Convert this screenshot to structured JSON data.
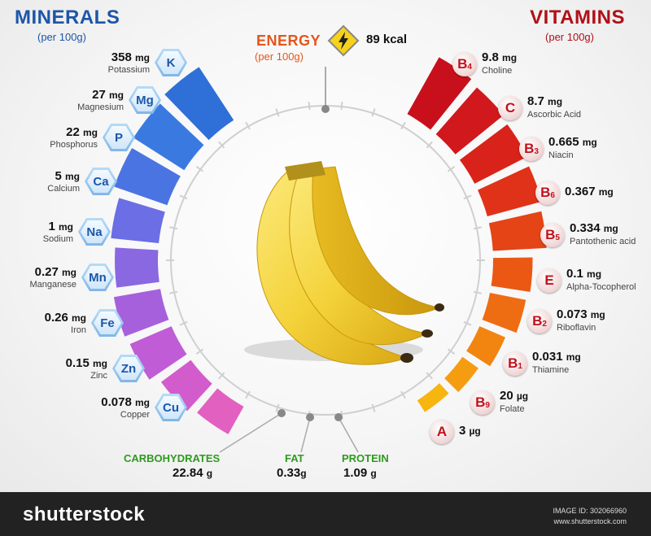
{
  "minerals": {
    "title": "MINERALS",
    "subtitle": "(per 100g)",
    "items": [
      {
        "value": "358",
        "unit": "mg",
        "name": "Potassium",
        "symbol": "K",
        "level": 1.0
      },
      {
        "value": "27",
        "unit": "mg",
        "name": "Magnesium",
        "symbol": "Mg",
        "level": 0.92
      },
      {
        "value": "22",
        "unit": "mg",
        "name": "Phosphorus",
        "symbol": "P",
        "level": 0.82
      },
      {
        "value": "5",
        "unit": "mg",
        "name": "Calcium",
        "symbol": "Ca",
        "level": 0.62
      },
      {
        "value": "1",
        "unit": "mg",
        "name": "Sodium",
        "symbol": "Na",
        "level": 0.5
      },
      {
        "value": "0.27",
        "unit": "mg",
        "name": "Manganese",
        "symbol": "Mn",
        "level": 0.6
      },
      {
        "value": "0.26",
        "unit": "mg",
        "name": "Iron",
        "symbol": "Fe",
        "level": 0.55
      },
      {
        "value": "0.15",
        "unit": "mg",
        "name": "Zinc",
        "symbol": "Zn",
        "level": 0.35
      },
      {
        "value": "0.078",
        "unit": "mg",
        "name": "Copper",
        "symbol": "Cu",
        "level": 0.22
      }
    ]
  },
  "vitamins": {
    "title": "VITAMINS",
    "subtitle": "(per 100g)",
    "items": [
      {
        "letter": "B",
        "sub": "4",
        "value": "9.8",
        "unit": "mg",
        "name": "Choline",
        "level": 1.0
      },
      {
        "letter": "C",
        "sub": "",
        "value": "8.7",
        "unit": "mg",
        "name": "Ascorbic Acid",
        "level": 0.95
      },
      {
        "letter": "B",
        "sub": "3",
        "value": "0.665",
        "unit": "mg",
        "name": "Niacin",
        "level": 0.9
      },
      {
        "letter": "B",
        "sub": "6",
        "value": "0.367",
        "unit": "mg",
        "name": "",
        "level": 0.85
      },
      {
        "letter": "B",
        "sub": "5",
        "value": "0.334",
        "unit": "mg",
        "name": "Pantothenic acid",
        "level": 0.8
      },
      {
        "letter": "E",
        "sub": "",
        "value": "0.1",
        "unit": "mg",
        "name": "Alpha-Tocopherol",
        "level": 0.55
      },
      {
        "letter": "B",
        "sub": "2",
        "value": "0.073",
        "unit": "mg",
        "name": "Riboflavin",
        "level": 0.5
      },
      {
        "letter": "B",
        "sub": "1",
        "value": "0.031",
        "unit": "mg",
        "name": "Thiamine",
        "level": 0.35
      },
      {
        "letter": "B",
        "sub": "9",
        "value": "20",
        "unit": "µg",
        "name": "Folate",
        "level": 0.2
      },
      {
        "letter": "A",
        "sub": "",
        "value": "3",
        "unit": "µg",
        "name": "",
        "level": 0.1
      }
    ]
  },
  "energy": {
    "title": "ENERGY",
    "subtitle": "(per 100g)",
    "value": "89 kcal"
  },
  "macros": [
    {
      "label": "CARBOHYDRATES",
      "value": "22.84",
      "unit": "g"
    },
    {
      "label": "FAT",
      "value": "0.33",
      "unit": "g"
    },
    {
      "label": "PROTEIN",
      "value": "1.09",
      "unit": "g"
    }
  ],
  "footer": {
    "logo": "shutterstock",
    "image_id": "IMAGE ID: 302066960",
    "site": "www.shutterstock.com"
  },
  "colors": {
    "mineral_title": "#1d56a8",
    "vitamin_title": "#b01018",
    "energy_title": "#e4561a",
    "macro_label": "#2e9a1e",
    "banana": "#f4d23a"
  }
}
